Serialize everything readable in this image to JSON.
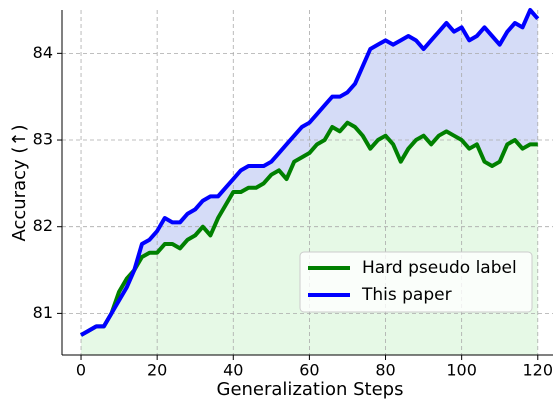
{
  "chart_data": {
    "type": "line",
    "xlabel": "Generalization Steps",
    "ylabel": "Accuracy (↑)",
    "x": [
      0,
      2,
      4,
      6,
      8,
      10,
      12,
      14,
      16,
      18,
      20,
      22,
      24,
      26,
      28,
      30,
      32,
      34,
      36,
      38,
      40,
      42,
      44,
      46,
      48,
      50,
      52,
      54,
      56,
      58,
      60,
      62,
      64,
      66,
      68,
      70,
      72,
      74,
      76,
      78,
      80,
      82,
      84,
      86,
      88,
      90,
      92,
      94,
      96,
      98,
      100,
      102,
      104,
      106,
      108,
      110,
      112,
      114,
      116,
      118,
      120
    ],
    "series": [
      {
        "name": "Hard pseudo label",
        "color": "#008000",
        "fill": "#e6f9e6",
        "values": [
          80.75,
          80.8,
          80.85,
          80.85,
          81.0,
          81.25,
          81.4,
          81.5,
          81.65,
          81.7,
          81.7,
          81.8,
          81.8,
          81.75,
          81.85,
          81.9,
          82.0,
          81.9,
          82.1,
          82.25,
          82.4,
          82.4,
          82.45,
          82.45,
          82.5,
          82.6,
          82.65,
          82.55,
          82.75,
          82.8,
          82.85,
          82.95,
          83.0,
          83.15,
          83.1,
          83.2,
          83.15,
          83.05,
          82.9,
          83.0,
          83.05,
          82.95,
          82.75,
          82.9,
          83.0,
          83.05,
          82.95,
          83.05,
          83.1,
          83.05,
          83.0,
          82.9,
          82.95,
          82.75,
          82.7,
          82.75,
          82.95,
          83.0,
          82.9,
          82.95,
          82.95
        ]
      },
      {
        "name": "This paper",
        "color": "#0000ff",
        "fill": "#d5dcf7",
        "values": [
          80.75,
          80.8,
          80.85,
          80.85,
          81.0,
          81.15,
          81.3,
          81.5,
          81.8,
          81.85,
          81.95,
          82.1,
          82.05,
          82.05,
          82.15,
          82.2,
          82.3,
          82.35,
          82.35,
          82.45,
          82.55,
          82.65,
          82.7,
          82.7,
          82.7,
          82.75,
          82.85,
          82.95,
          83.05,
          83.15,
          83.2,
          83.3,
          83.4,
          83.5,
          83.5,
          83.55,
          83.65,
          83.85,
          84.05,
          84.1,
          84.15,
          84.1,
          84.15,
          84.2,
          84.15,
          84.05,
          84.15,
          84.25,
          84.35,
          84.25,
          84.3,
          84.15,
          84.2,
          84.3,
          84.2,
          84.1,
          84.25,
          84.35,
          84.3,
          84.5,
          84.4
        ]
      }
    ],
    "xlim": [
      -5,
      124
    ],
    "ylim": [
      80.52,
      84.5
    ],
    "xticks": [
      0,
      20,
      40,
      60,
      80,
      100,
      120
    ],
    "yticks": [
      81,
      82,
      83,
      84
    ],
    "grid": true,
    "legend": "lower right"
  }
}
